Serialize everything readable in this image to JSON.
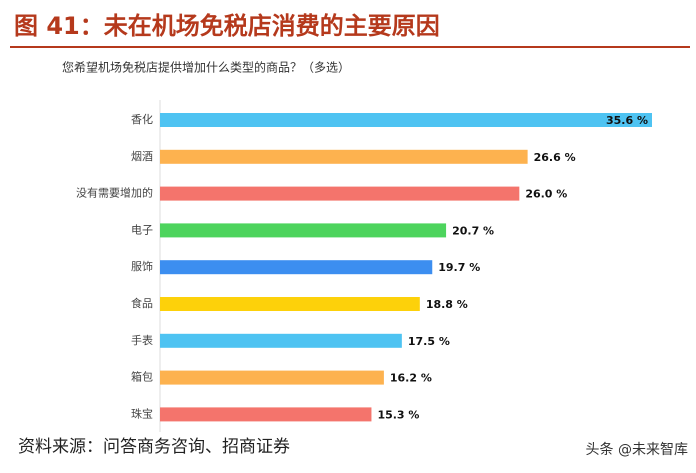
{
  "chart_data": {
    "type": "bar",
    "orientation": "horizontal",
    "title": "图 41：未在机场免税店消费的主要原因",
    "subtitle": "您希望机场免税店提供增加什么类型的商品？（多选）",
    "categories": [
      "香化",
      "烟酒",
      "没有需要增加的",
      "电子",
      "服饰",
      "食品",
      "手表",
      "箱包",
      "珠宝"
    ],
    "values": [
      35.6,
      26.6,
      26.0,
      20.7,
      19.7,
      18.8,
      17.5,
      16.2,
      15.3
    ],
    "value_labels": [
      "35.6 %",
      "26.6 %",
      "26.0 %",
      "20.7 %",
      "19.7 %",
      "18.8 %",
      "17.5 %",
      "16.2 %",
      "15.3 %"
    ],
    "colors": [
      "#4ec3f2",
      "#fdb24f",
      "#f4746c",
      "#4dd45d",
      "#3c8ef0",
      "#fdd10a",
      "#4ec3f2",
      "#fdb24f",
      "#f4746c"
    ],
    "source": "资料来源：问答商务咨询、招商证券",
    "watermark": "头条 @未来智库"
  }
}
